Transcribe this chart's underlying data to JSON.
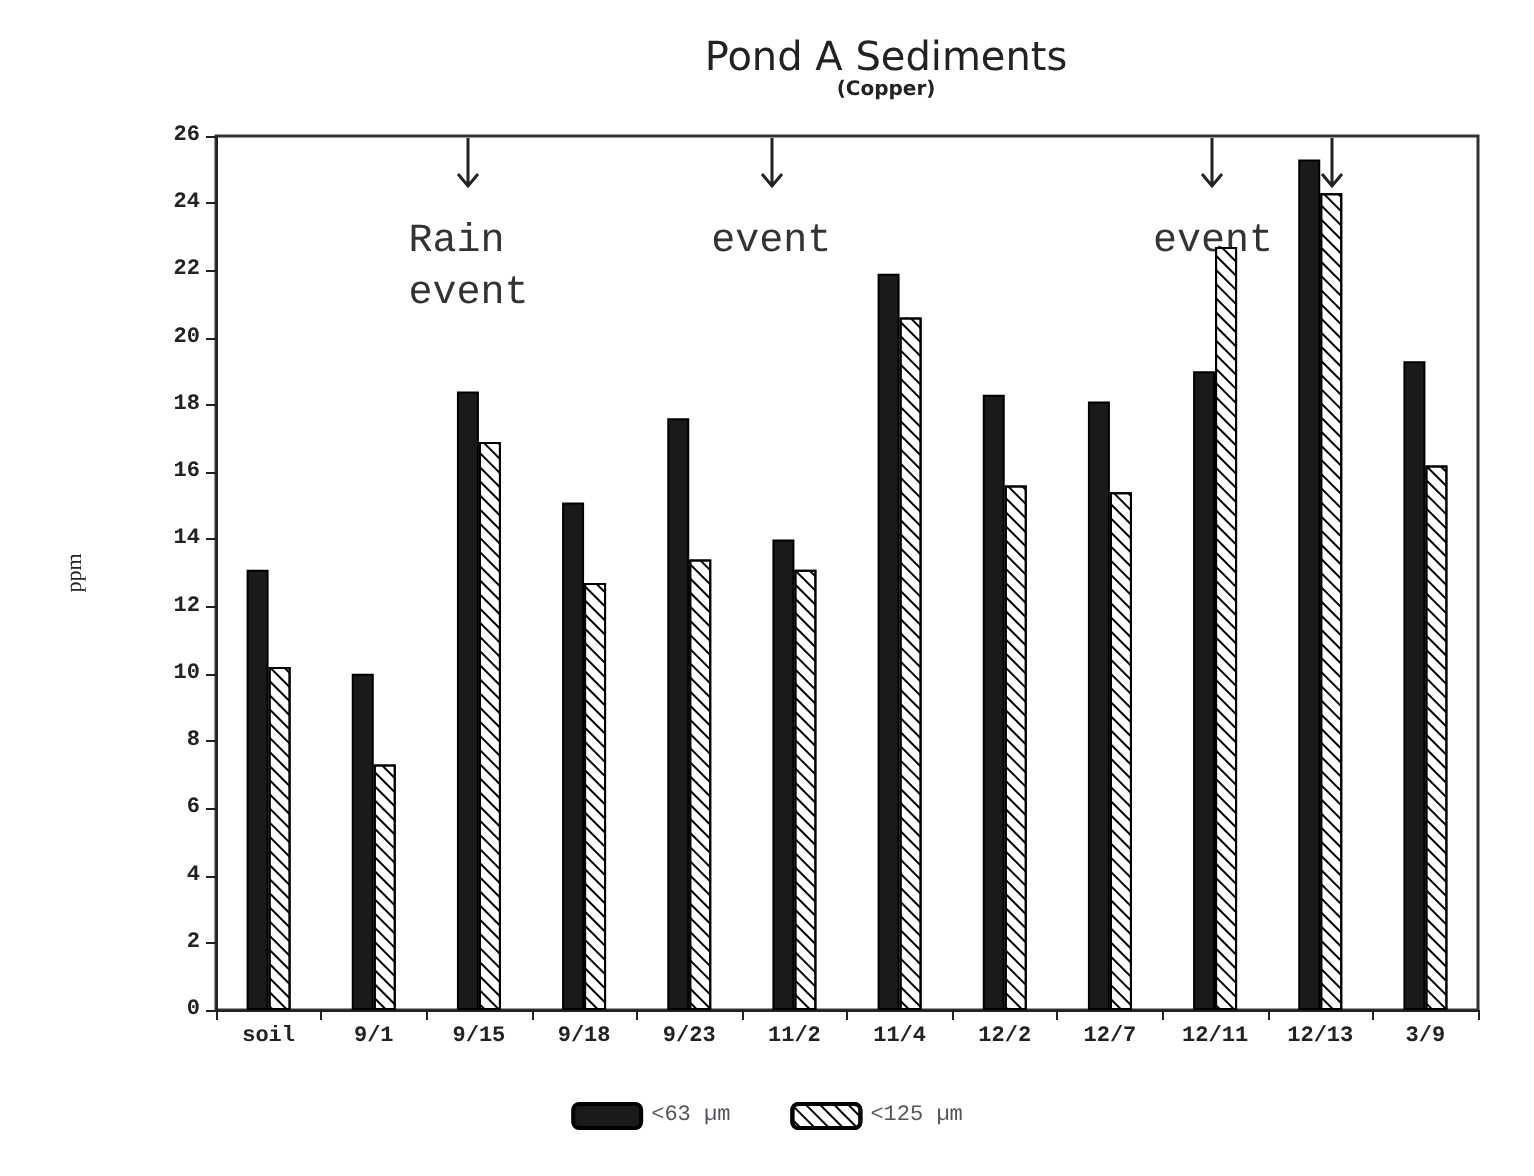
{
  "chart_data": {
    "type": "bar",
    "title": "Pond A Sediments",
    "subtitle": "(Copper)",
    "ylabel": "ppm",
    "categories": [
      "soil",
      "9/1",
      "9/15",
      "9/18",
      "9/23",
      "11/2",
      "11/4",
      "12/2",
      "12/7",
      "12/11",
      "12/13",
      "3/9"
    ],
    "series": [
      {
        "name": "<63 µm",
        "color": "#1a1a1a",
        "values": [
          13.1,
          10.0,
          18.4,
          15.1,
          17.6,
          14.0,
          21.9,
          18.3,
          18.1,
          19.0,
          25.3,
          19.3
        ]
      },
      {
        "name": "<125 µm",
        "color": "#ffffff",
        "values": [
          10.2,
          7.3,
          16.9,
          12.7,
          13.4,
          13.1,
          20.6,
          15.6,
          15.4,
          22.7,
          24.3,
          16.2
        ]
      }
    ],
    "ylim": [
      0,
      26
    ],
    "yticks": [
      0,
      2,
      4,
      6,
      8,
      10,
      12,
      14,
      16,
      18,
      20,
      22,
      24,
      26
    ],
    "grid": false,
    "legend": "bottom",
    "annotations": [
      "Rain\nevent",
      "event",
      "event"
    ]
  }
}
